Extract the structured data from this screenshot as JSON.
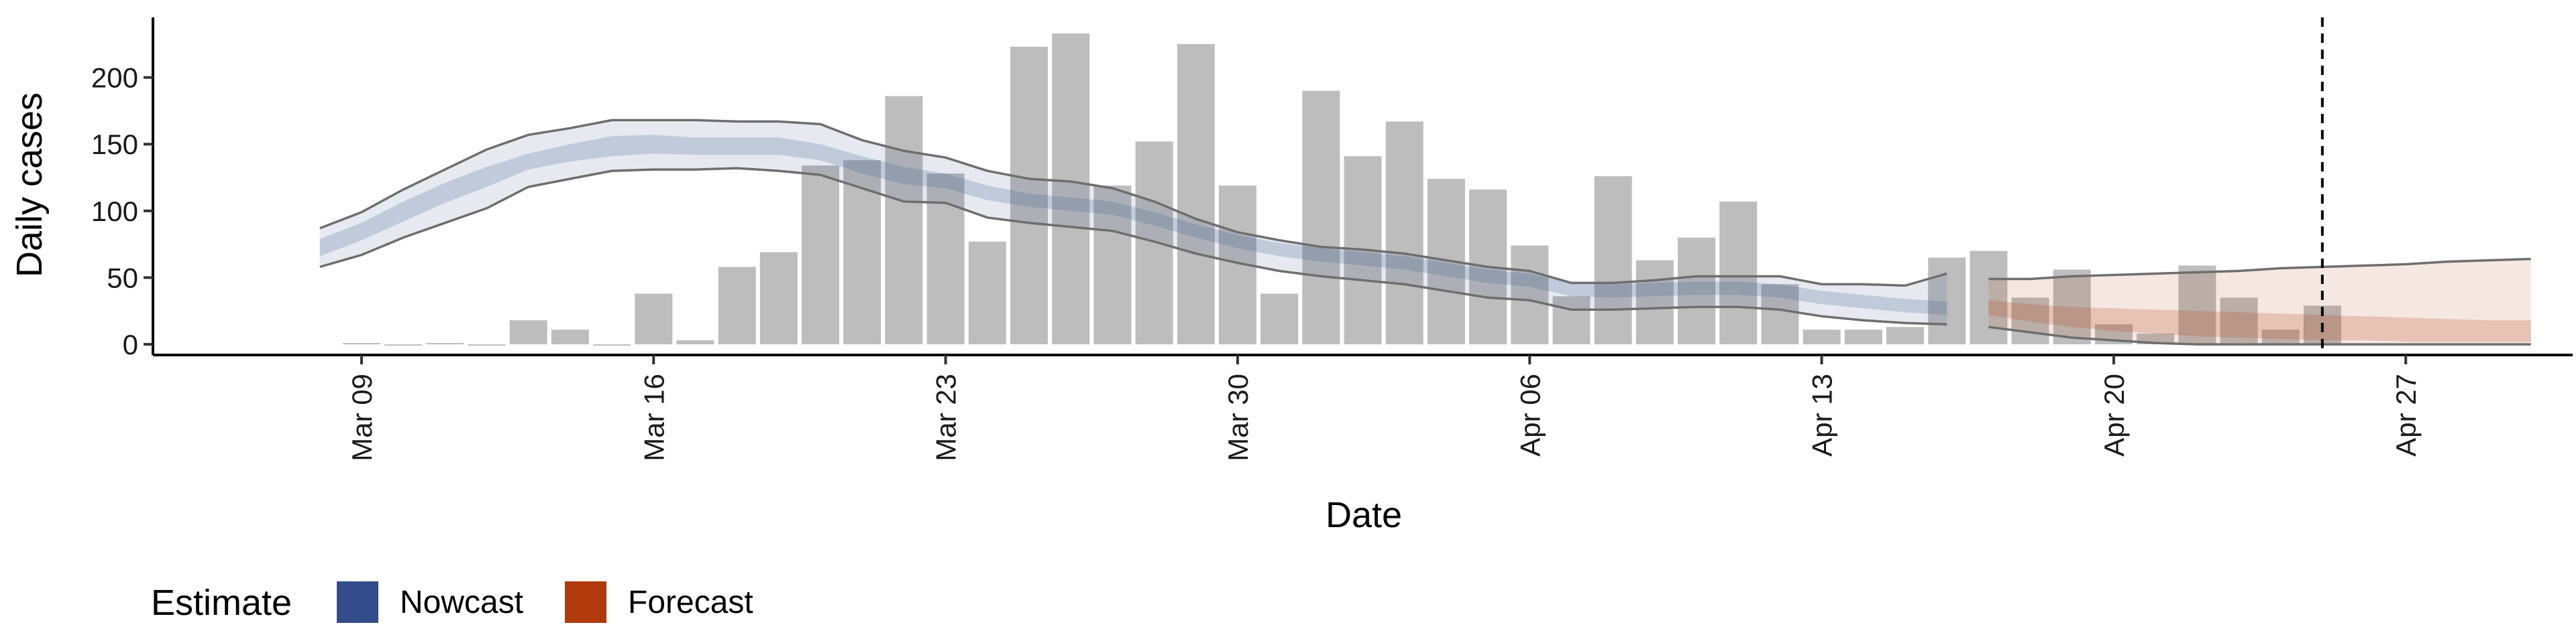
{
  "chart_data": {
    "type": "bar",
    "xlabel": "Date",
    "ylabel": "Daily cases",
    "ylim": [
      -8,
      245
    ],
    "yticks": [
      0,
      50,
      100,
      150,
      200
    ],
    "xlim": [
      "2020-03-04",
      "2020-05-01"
    ],
    "xtick_dates": [
      "2020-03-09",
      "2020-03-16",
      "2020-03-23",
      "2020-03-30",
      "2020-04-06",
      "2020-04-13",
      "2020-04-20",
      "2020-04-27"
    ],
    "xtick_labels": [
      "Mar 09",
      "Mar 16",
      "Mar 23",
      "Mar 30",
      "Apr 06",
      "Apr 13",
      "Apr 20",
      "Apr 27"
    ],
    "vline_date": "2020-04-25",
    "grid": false,
    "legend_position": "bottom-left",
    "bars": {
      "color": "#bdbdbd",
      "dates": [
        "2020-03-09",
        "2020-03-10",
        "2020-03-11",
        "2020-03-12",
        "2020-03-13",
        "2020-03-14",
        "2020-03-15",
        "2020-03-16",
        "2020-03-17",
        "2020-03-18",
        "2020-03-19",
        "2020-03-20",
        "2020-03-21",
        "2020-03-22",
        "2020-03-23",
        "2020-03-24",
        "2020-03-25",
        "2020-03-26",
        "2020-03-27",
        "2020-03-28",
        "2020-03-29",
        "2020-03-30",
        "2020-03-31",
        "2020-04-01",
        "2020-04-02",
        "2020-04-03",
        "2020-04-04",
        "2020-04-05",
        "2020-04-06",
        "2020-04-07",
        "2020-04-08",
        "2020-04-09",
        "2020-04-10",
        "2020-04-11",
        "2020-04-12",
        "2020-04-13",
        "2020-04-14",
        "2020-04-15",
        "2020-04-16",
        "2020-04-17",
        "2020-04-18",
        "2020-04-19",
        "2020-04-20",
        "2020-04-21",
        "2020-04-22",
        "2020-04-23",
        "2020-04-24",
        "2020-04-25"
      ],
      "values": [
        1,
        0,
        1,
        0,
        18,
        11,
        0,
        38,
        3,
        58,
        69,
        134,
        138,
        186,
        128,
        77,
        223,
        233,
        119,
        152,
        225,
        119,
        38,
        190,
        141,
        167,
        124,
        116,
        74,
        36,
        126,
        63,
        80,
        107,
        45,
        11,
        11,
        13,
        65,
        70,
        35,
        56,
        15,
        8,
        59,
        35,
        11,
        29
      ]
    },
    "nowcast": {
      "name": "Nowcast",
      "color": "#3f5a8e",
      "dates": [
        "2020-03-08",
        "2020-03-09",
        "2020-03-10",
        "2020-03-11",
        "2020-03-12",
        "2020-03-13",
        "2020-03-14",
        "2020-03-15",
        "2020-03-16",
        "2020-03-17",
        "2020-03-18",
        "2020-03-19",
        "2020-03-20",
        "2020-03-21",
        "2020-03-22",
        "2020-03-23",
        "2020-03-24",
        "2020-03-25",
        "2020-03-26",
        "2020-03-27",
        "2020-03-28",
        "2020-03-29",
        "2020-03-30",
        "2020-03-31",
        "2020-04-01",
        "2020-04-02",
        "2020-04-03",
        "2020-04-04",
        "2020-04-05",
        "2020-04-06",
        "2020-04-07",
        "2020-04-08",
        "2020-04-09",
        "2020-04-10",
        "2020-04-11",
        "2020-04-12",
        "2020-04-13",
        "2020-04-14",
        "2020-04-15",
        "2020-04-16"
      ],
      "lower90": [
        58,
        67,
        80,
        91,
        102,
        118,
        124,
        130,
        131,
        131,
        132,
        130,
        127,
        117,
        107,
        106,
        95,
        91,
        88,
        85,
        77,
        68,
        61,
        55,
        51,
        48,
        45,
        40,
        35,
        33,
        26,
        26,
        27,
        28,
        28,
        26,
        21,
        18,
        16,
        15
      ],
      "lower50": [
        66,
        78,
        92,
        106,
        118,
        131,
        137,
        141,
        143,
        142,
        142,
        142,
        138,
        128,
        120,
        117,
        108,
        103,
        100,
        97,
        89,
        80,
        72,
        66,
        62,
        59,
        56,
        51,
        46,
        43,
        36,
        35,
        36,
        37,
        37,
        35,
        30,
        27,
        24,
        22
      ],
      "upper50": [
        79,
        91,
        107,
        121,
        133,
        143,
        150,
        156,
        157,
        155,
        155,
        155,
        150,
        141,
        133,
        128,
        119,
        113,
        110,
        107,
        99,
        90,
        82,
        76,
        72,
        69,
        66,
        61,
        56,
        53,
        46,
        45,
        46,
        47,
        47,
        45,
        40,
        37,
        34,
        32
      ],
      "upper90": [
        87,
        99,
        116,
        131,
        146,
        157,
        162,
        168,
        168,
        168,
        167,
        167,
        165,
        153,
        145,
        140,
        130,
        124,
        122,
        117,
        107,
        94,
        84,
        78,
        73,
        71,
        68,
        63,
        58,
        55,
        46,
        46,
        48,
        51,
        51,
        51,
        45,
        45,
        44,
        53
      ]
    },
    "forecast": {
      "name": "Forecast",
      "color": "#b5441a",
      "dates": [
        "2020-04-17",
        "2020-04-18",
        "2020-04-19",
        "2020-04-20",
        "2020-04-21",
        "2020-04-22",
        "2020-04-23",
        "2020-04-24",
        "2020-04-25",
        "2020-04-26",
        "2020-04-27",
        "2020-04-28",
        "2020-04-29",
        "2020-04-30"
      ],
      "lower90": [
        13,
        9,
        5,
        3,
        1,
        0,
        0,
        0,
        0,
        0,
        0,
        0,
        0,
        0
      ],
      "lower50": [
        22,
        17,
        13,
        10,
        8,
        6,
        5,
        4,
        3,
        3,
        2,
        2,
        2,
        2
      ],
      "upper50": [
        33,
        30,
        28,
        27,
        26,
        25,
        24,
        23,
        22,
        21,
        20,
        19,
        18,
        18
      ],
      "upper90": [
        49,
        49,
        51,
        52,
        53,
        54,
        55,
        57,
        58,
        59,
        60,
        62,
        63,
        64
      ]
    }
  },
  "legend": {
    "title": "Estimate",
    "items": [
      {
        "label": "Nowcast",
        "color": "#324d8a"
      },
      {
        "label": "Forecast",
        "color": "#b03a0b"
      }
    ]
  }
}
